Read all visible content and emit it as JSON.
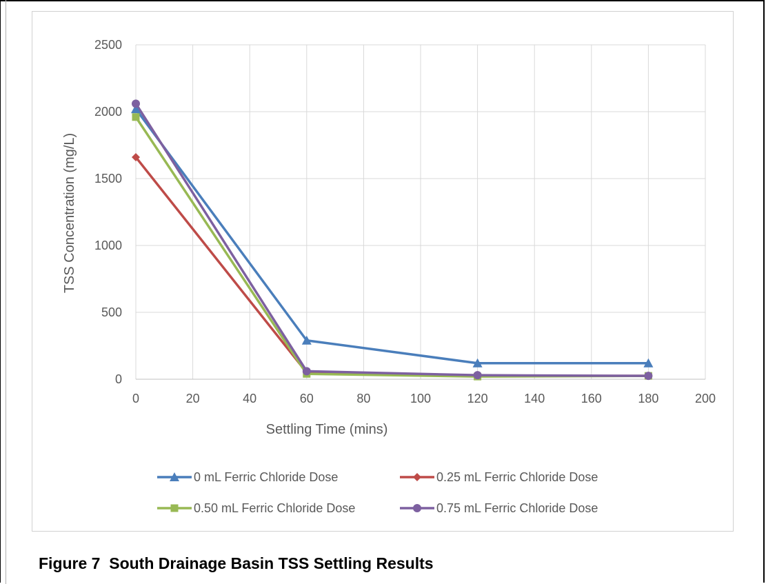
{
  "caption": "Figure 7  South Drainage Basin TSS Settling Results",
  "chart_data": {
    "type": "line",
    "xlabel": "Settling Time (mins)",
    "ylabel": "TSS Concentration (mg/L)",
    "xlim": [
      0,
      200
    ],
    "ylim": [
      0,
      2500
    ],
    "xticks": [
      0,
      20,
      40,
      60,
      80,
      100,
      120,
      140,
      160,
      180,
      200
    ],
    "yticks": [
      0,
      500,
      1000,
      1500,
      2000,
      2500
    ],
    "grid": true,
    "legend_position": "bottom",
    "x": [
      0,
      60,
      120,
      180
    ],
    "series": [
      {
        "name": "0 mL Ferric Chloride Dose",
        "values": [
          2020,
          290,
          120,
          120
        ],
        "color": "#4a7ebb",
        "marker": "triangle"
      },
      {
        "name": "0.25 mL Ferric Chloride Dose",
        "values": [
          1660,
          50,
          25,
          25
        ],
        "color": "#be4b48",
        "marker": "diamond"
      },
      {
        "name": "0.50 mL Ferric Chloride Dose",
        "values": [
          1960,
          40,
          20,
          25
        ],
        "color": "#98b954",
        "marker": "square"
      },
      {
        "name": "0.75 mL Ferric Chloride Dose",
        "values": [
          2060,
          60,
          30,
          25
        ],
        "color": "#7d60a0",
        "marker": "circle"
      }
    ]
  }
}
